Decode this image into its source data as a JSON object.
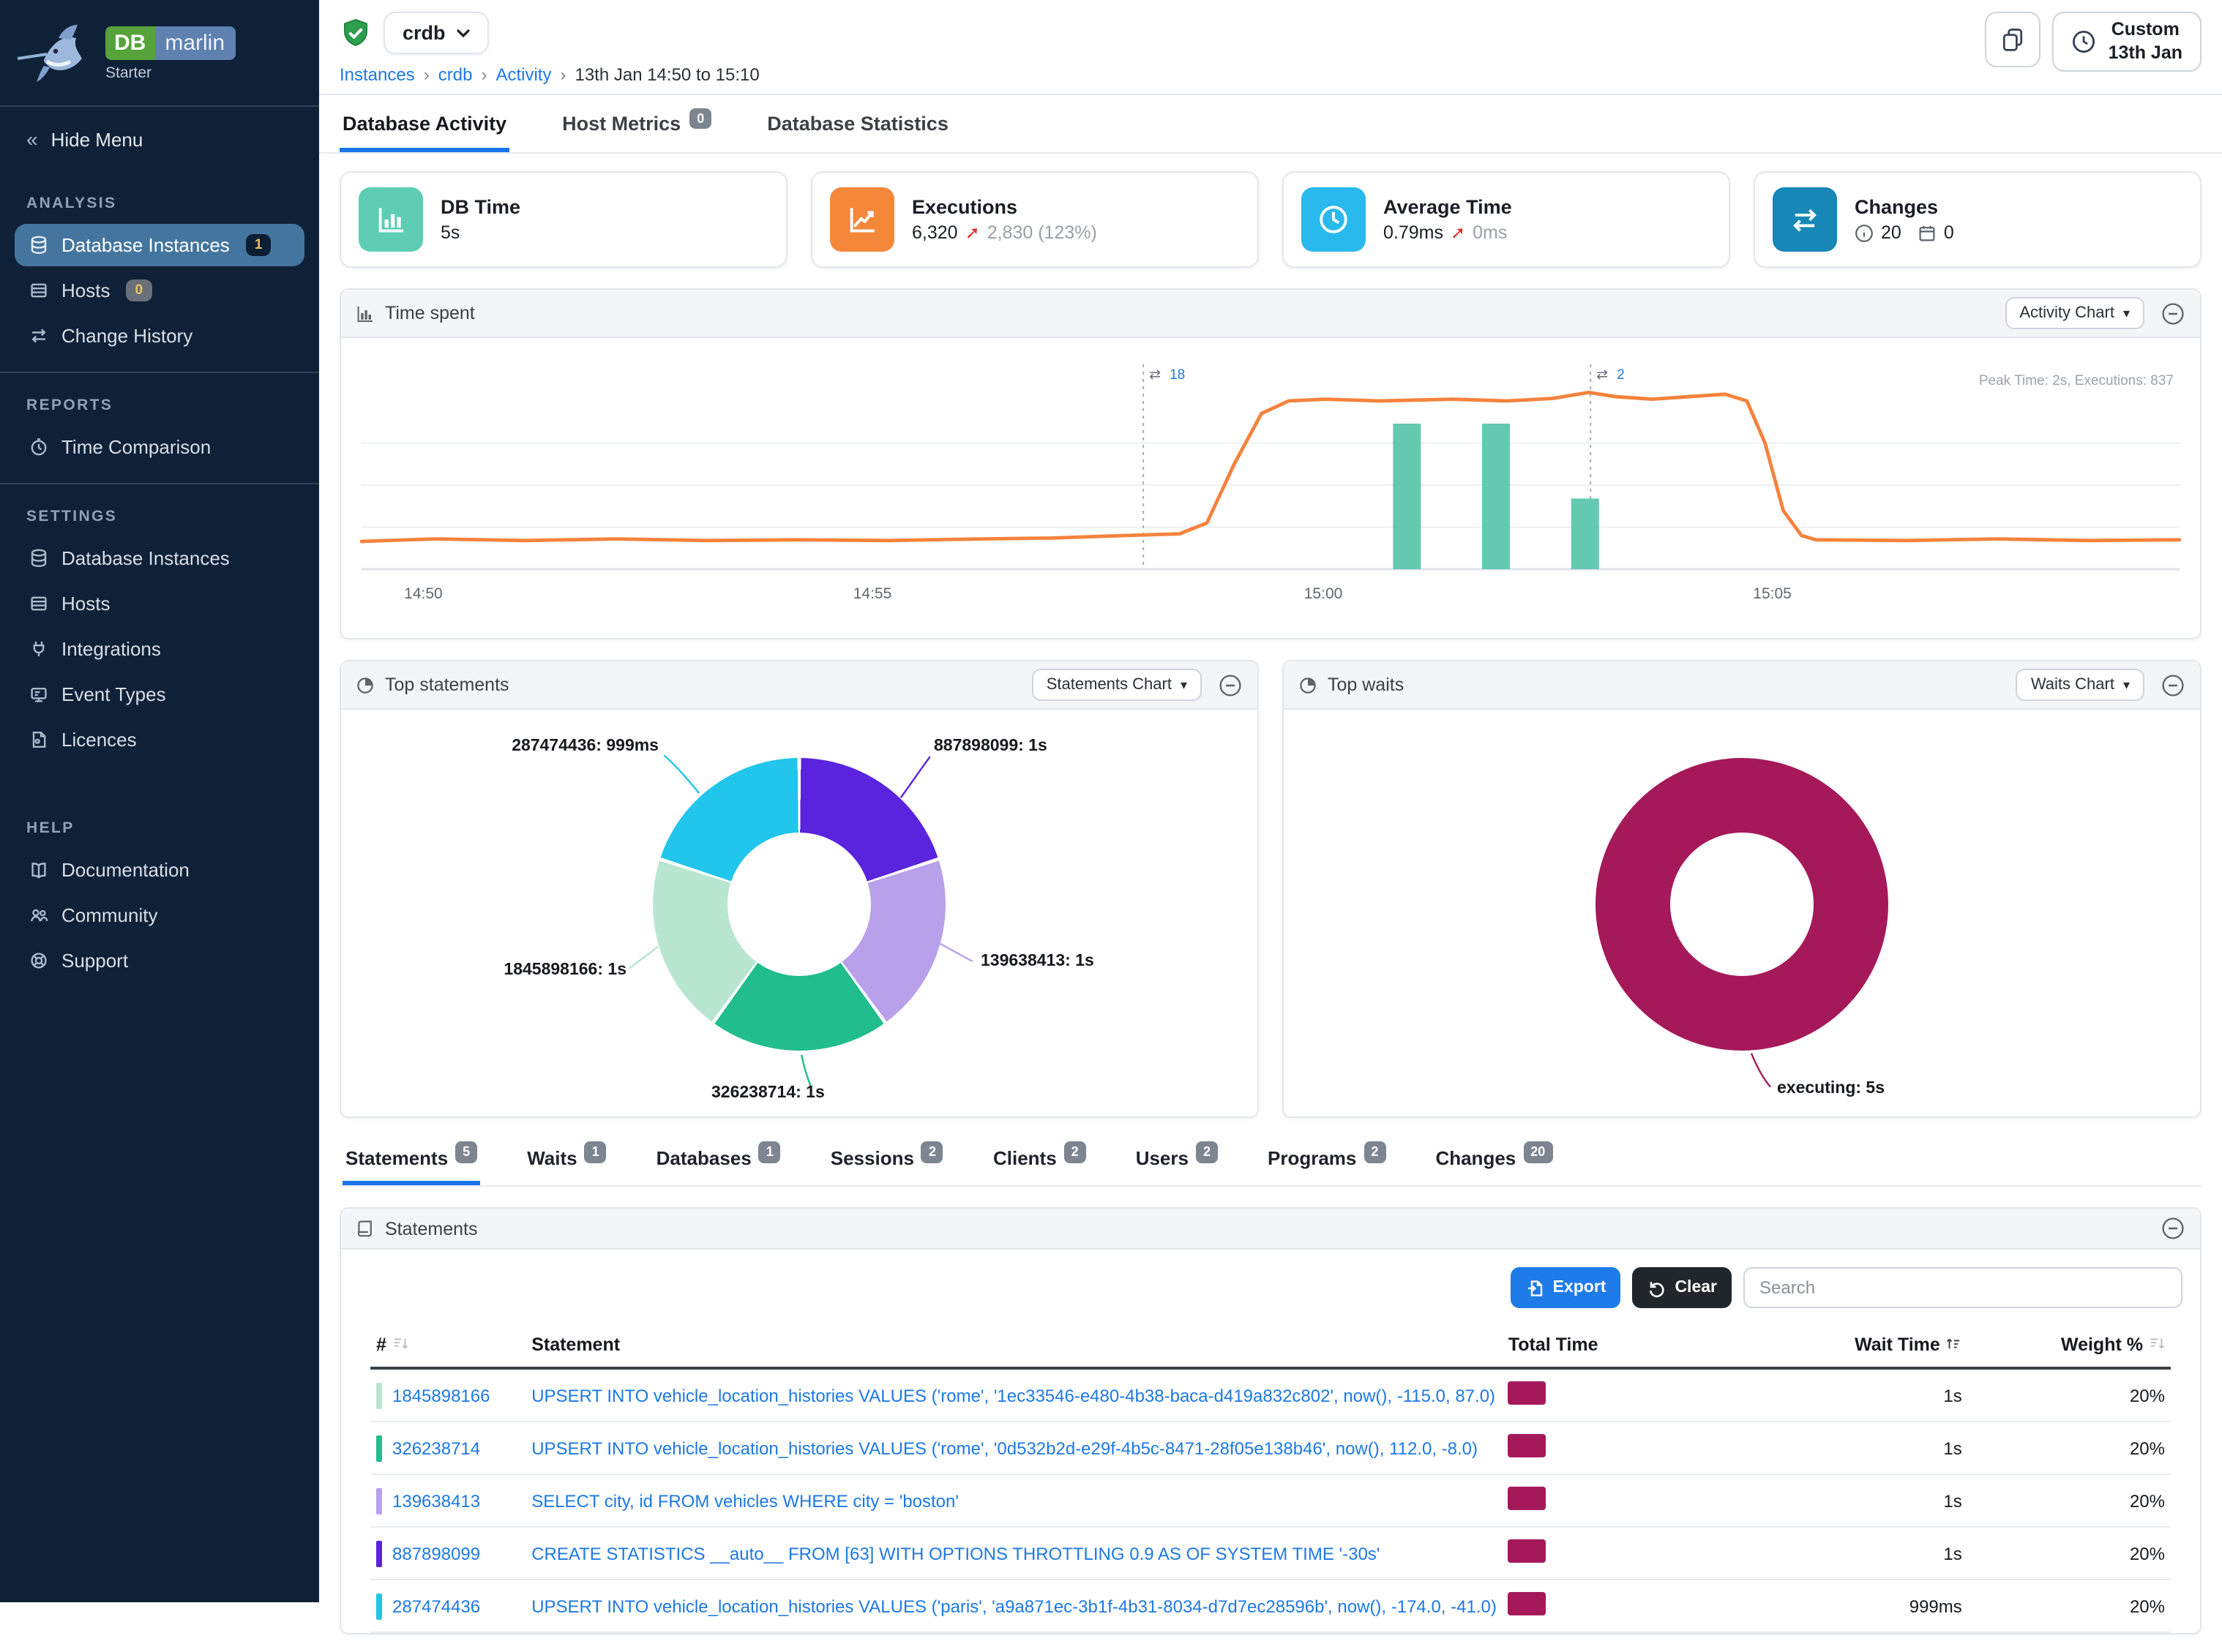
{
  "sidebar": {
    "logo": {
      "db": "DB",
      "marlin": "marlin",
      "edition": "Starter"
    },
    "hide_menu_label": "Hide Menu",
    "sections": [
      {
        "title": "ANALYSIS",
        "items": [
          {
            "label": "Database Instances",
            "badge": "1"
          },
          {
            "label": "Hosts",
            "badge": "0"
          },
          {
            "label": "Change History"
          }
        ]
      },
      {
        "title": "REPORTS",
        "items": [
          {
            "label": "Time Comparison"
          }
        ]
      },
      {
        "title": "SETTINGS",
        "items": [
          {
            "label": "Database Instances"
          },
          {
            "label": "Hosts"
          },
          {
            "label": "Integrations"
          },
          {
            "label": "Event Types"
          },
          {
            "label": "Licences"
          }
        ]
      },
      {
        "title": "HELP",
        "items": [
          {
            "label": "Documentation"
          },
          {
            "label": "Community"
          },
          {
            "label": "Support"
          }
        ]
      }
    ]
  },
  "header": {
    "instance_name": "crdb",
    "breadcrumbs": [
      "Instances",
      "crdb",
      "Activity",
      "13th Jan 14:50 to 15:10"
    ],
    "time_range_button": {
      "line1": "Custom",
      "line2": "13th Jan"
    }
  },
  "main_tabs": [
    {
      "label": "Database Activity"
    },
    {
      "label": "Host Metrics",
      "badge": "0"
    },
    {
      "label": "Database Statistics"
    }
  ],
  "metric_cards": [
    {
      "title": "DB Time",
      "value": "5s",
      "icon_color": "#5ecdb3"
    },
    {
      "title": "Executions",
      "value": "6,320",
      "delta_arrow": "➚",
      "delta": "2,830 (123%)",
      "icon_color": "#f5873b"
    },
    {
      "title": "Average Time",
      "value": "0.79ms",
      "delta_arrow": "➚",
      "delta": "0ms",
      "icon_color": "#29b9ec"
    },
    {
      "title": "Changes",
      "info_count": "20",
      "calendar_count": "0",
      "icon_color": "#1787b8"
    }
  ],
  "panels": {
    "time_spent": {
      "title": "Time spent",
      "chart_button": "Activity Chart",
      "peak_note": "Peak Time: 2s, Executions: 837",
      "chart": {
        "type": "line+bar",
        "y_max": 2.4,
        "line_color": "#f5823c",
        "bar_color": "#63cab0",
        "x_ticks": [
          {
            "f": 0.034,
            "label": "14:50"
          },
          {
            "f": 0.281,
            "label": "14:55"
          },
          {
            "f": 0.529,
            "label": "15:00"
          },
          {
            "f": 0.776,
            "label": "15:05"
          }
        ],
        "line_points": [
          [
            0,
            0.33
          ],
          [
            0.04,
            0.36
          ],
          [
            0.09,
            0.34
          ],
          [
            0.14,
            0.36
          ],
          [
            0.19,
            0.34
          ],
          [
            0.24,
            0.35
          ],
          [
            0.29,
            0.34
          ],
          [
            0.34,
            0.36
          ],
          [
            0.38,
            0.37
          ],
          [
            0.42,
            0.4
          ],
          [
            0.45,
            0.42
          ],
          [
            0.465,
            0.55
          ],
          [
            0.48,
            1.25
          ],
          [
            0.495,
            1.85
          ],
          [
            0.51,
            2.0
          ],
          [
            0.53,
            2.02
          ],
          [
            0.56,
            2.0
          ],
          [
            0.6,
            2.02
          ],
          [
            0.63,
            2.0
          ],
          [
            0.655,
            2.03
          ],
          [
            0.675,
            2.1
          ],
          [
            0.69,
            2.05
          ],
          [
            0.71,
            2.02
          ],
          [
            0.73,
            2.05
          ],
          [
            0.75,
            2.08
          ],
          [
            0.762,
            2.0
          ],
          [
            0.772,
            1.5
          ],
          [
            0.782,
            0.7
          ],
          [
            0.792,
            0.4
          ],
          [
            0.8,
            0.35
          ],
          [
            0.85,
            0.34
          ],
          [
            0.9,
            0.36
          ],
          [
            0.95,
            0.34
          ],
          [
            1,
            0.35
          ]
        ],
        "bars": [
          {
            "x": 0.575,
            "value": 1.73
          },
          {
            "x": 0.624,
            "value": 1.73
          },
          {
            "x": 0.673,
            "value": 0.84
          }
        ],
        "change_markers": [
          {
            "f": 0.43,
            "count": "18"
          },
          {
            "f": 0.676,
            "count": "2"
          }
        ]
      }
    },
    "top_statements": {
      "title": "Top statements",
      "chart_button": "Statements Chart",
      "chart": {
        "type": "donut",
        "slices": [
          {
            "id": "887898099",
            "time": "1s",
            "value": 20,
            "color": "#5a23dd",
            "label": "887898099: 1s"
          },
          {
            "id": "139638413",
            "time": "1s",
            "value": 20,
            "color": "#b9a0ea",
            "label": "139638413: 1s"
          },
          {
            "id": "326238714",
            "time": "1s",
            "value": 20,
            "color": "#21bd8d",
            "label": "326238714: 1s"
          },
          {
            "id": "1845898166",
            "time": "1s",
            "value": 20,
            "color": "#b9e6d1",
            "label": "1845898166: 1s"
          },
          {
            "id": "287474436",
            "time": "999ms",
            "value": 20,
            "color": "#22c5ec",
            "label": "287474436: 999ms"
          }
        ]
      }
    },
    "top_waits": {
      "title": "Top waits",
      "chart_button": "Waits Chart",
      "chart": {
        "type": "donut",
        "slices": [
          {
            "id": "executing",
            "time": "5s",
            "value": 100,
            "color": "#a5195a",
            "label": "executing: 5s"
          }
        ]
      }
    }
  },
  "detail_tabs": [
    {
      "label": "Statements",
      "badge": "5"
    },
    {
      "label": "Waits",
      "badge": "1"
    },
    {
      "label": "Databases",
      "badge": "1"
    },
    {
      "label": "Sessions",
      "badge": "2"
    },
    {
      "label": "Clients",
      "badge": "2"
    },
    {
      "label": "Users",
      "badge": "2"
    },
    {
      "label": "Programs",
      "badge": "2"
    },
    {
      "label": "Changes",
      "badge": "20"
    }
  ],
  "statements_panel": {
    "title": "Statements",
    "export_label": "Export",
    "clear_label": "Clear",
    "search_placeholder": "Search",
    "columns": {
      "id": "#",
      "statement": "Statement",
      "total_time": "Total Time",
      "wait_time": "Wait Time",
      "weight": "Weight %"
    },
    "rows": [
      {
        "id": "1845898166",
        "color": "#b9e6d1",
        "statement": "UPSERT INTO vehicle_location_histories VALUES ('rome', '1ec33546-e480-4b38-baca-d419a832c802', now(), -115.0, 87.0)",
        "wait_time": "1s",
        "weight": "20%",
        "bar_color": "#a5195a"
      },
      {
        "id": "326238714",
        "color": "#21bd8d",
        "statement": "UPSERT INTO vehicle_location_histories VALUES ('rome', '0d532b2d-e29f-4b5c-8471-28f05e138b46', now(), 112.0, -8.0)",
        "wait_time": "1s",
        "weight": "20%",
        "bar_color": "#a5195a"
      },
      {
        "id": "139638413",
        "color": "#b9a0ea",
        "statement": "SELECT city, id FROM vehicles WHERE city = 'boston'",
        "wait_time": "1s",
        "weight": "20%",
        "bar_color": "#a5195a"
      },
      {
        "id": "887898099",
        "color": "#5a23dd",
        "statement": "CREATE STATISTICS __auto__ FROM [63] WITH OPTIONS THROTTLING 0.9 AS OF SYSTEM TIME '-30s'",
        "wait_time": "1s",
        "weight": "20%",
        "bar_color": "#a5195a"
      },
      {
        "id": "287474436",
        "color": "#22c5ec",
        "statement": "UPSERT INTO vehicle_location_histories VALUES ('paris', 'a9a871ec-3b1f-4b31-8034-d7d7ec28596b', now(), -174.0, -41.0)",
        "wait_time": "999ms",
        "weight": "20%",
        "bar_color": "#a5195a"
      }
    ]
  }
}
